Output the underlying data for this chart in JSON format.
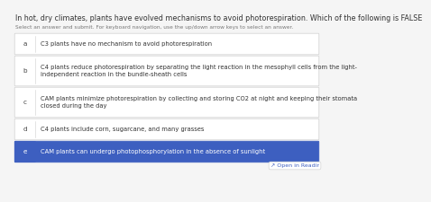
{
  "title": "In hot, dry climates, plants have evolved mechanisms to avoid photorespiration. Which of the following is FALSE",
  "subtitle": "Select an answer and submit. For keyboard navigation, use the up/down arrow keys to select an answer.",
  "options": [
    {
      "letter": "a",
      "text": "C3 plants have no mechanism to avoid photorespiration",
      "selected": false,
      "multiline": false
    },
    {
      "letter": "b",
      "text": "C4 plants reduce photorespiration by separating the light reaction in the mesophyll cells from the light-\nindependent reaction in the bundle-sheath cells",
      "selected": false,
      "multiline": true
    },
    {
      "letter": "c",
      "text": "CAM plants minimize photorespiration by collecting and storing CO2 at night and keeping their stomata\nclosed during the day",
      "selected": false,
      "multiline": true
    },
    {
      "letter": "d",
      "text": "C4 plants include corn, sugarcane, and many grasses",
      "selected": false,
      "multiline": false
    },
    {
      "letter": "e",
      "text": "CAM plants can undergo photophosphorylation in the absence of sunlight",
      "selected": true,
      "multiline": false
    }
  ],
  "bg_color": "#f5f5f5",
  "box_bg": "#ffffff",
  "box_border": "#d0d0d0",
  "selected_bg": "#3d5fc0",
  "selected_text": "#ffffff",
  "text_color": "#333333",
  "letter_color": "#444444",
  "subtitle_color": "#777777",
  "title_fontsize": 5.8,
  "subtitle_fontsize": 4.2,
  "option_fontsize": 4.9,
  "letter_fontsize": 5.2,
  "open_reader_text": "Open in Readir",
  "open_reader_color": "#3d5fc0",
  "open_reader_fontsize": 4.5
}
